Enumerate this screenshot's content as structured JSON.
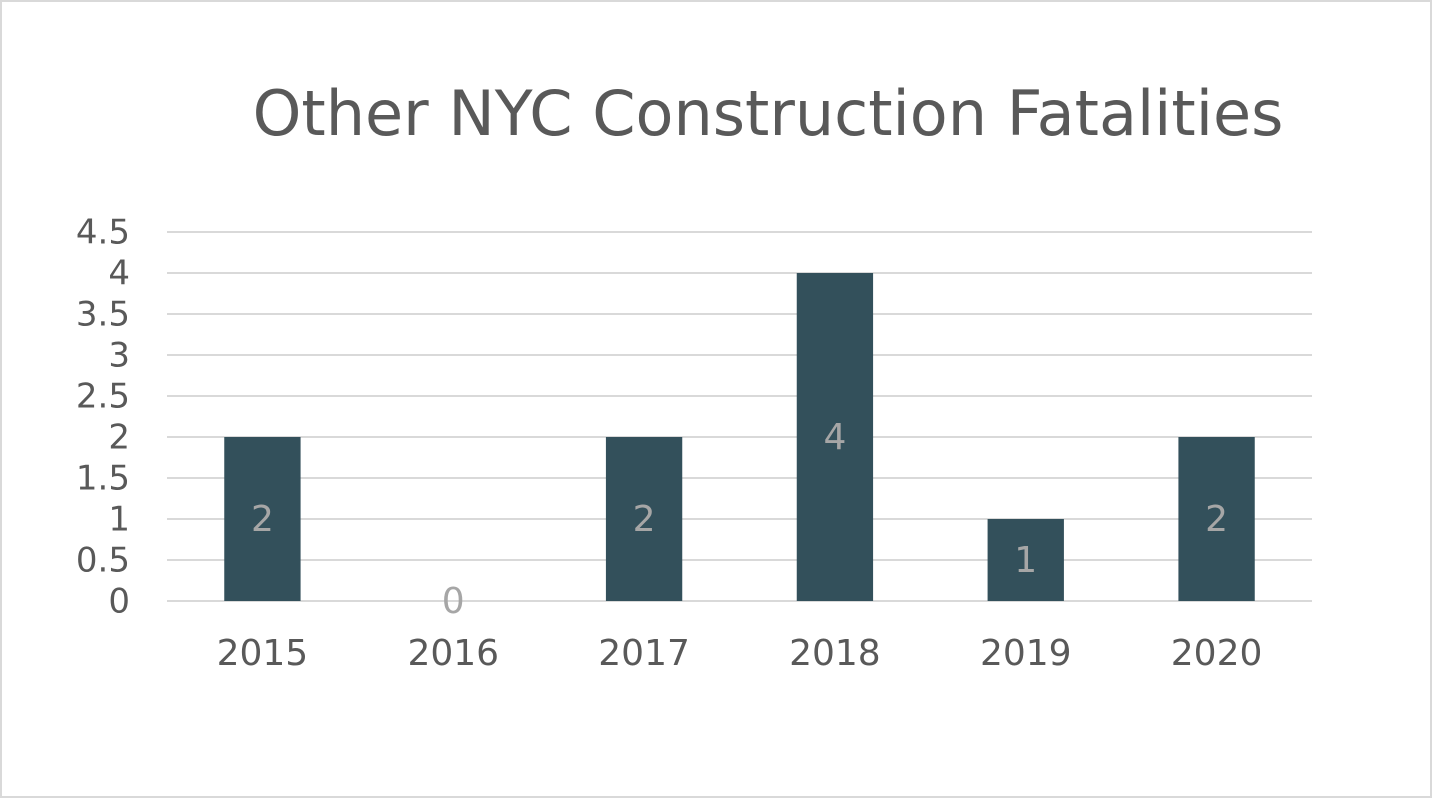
{
  "chart_data": {
    "type": "bar",
    "title": "Other NYC Construction Fatalities",
    "categories": [
      "2015",
      "2016",
      "2017",
      "2018",
      "2019",
      "2020"
    ],
    "values": [
      2,
      0,
      2,
      4,
      1,
      2
    ],
    "color": "#33505b",
    "ylim": [
      0,
      4.5
    ],
    "yticks": [
      0,
      0.5,
      1,
      1.5,
      2,
      2.5,
      3,
      3.5,
      4,
      4.5
    ],
    "grid": true
  }
}
